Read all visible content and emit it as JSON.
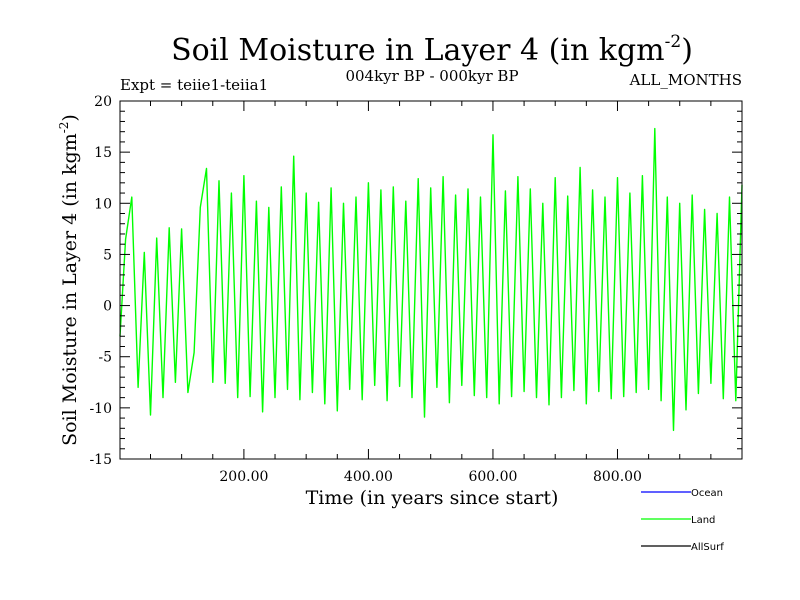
{
  "header": {
    "title_main": "Soil Moisture in Layer 4 (in kgm",
    "title_sup": "-2",
    "title_end": ")",
    "expt": "Expt = teiie1-teiia1",
    "period": "004kyr BP - 000kyr BP",
    "months": "ALL_MONTHS"
  },
  "colors": {
    "ocean": "#0000ff",
    "land": "#00ff00",
    "allsurf": "#000000",
    "axis": "#000000"
  },
  "chart_data": {
    "type": "line",
    "title": "Soil Moisture in Layer 4 (in kgm-2)",
    "xlabel": "Time (in years since start)",
    "ylabel": "Soil Moisture in Layer 4 (in kgm-2)",
    "ylabel_main": "Soil Moisture in Layer 4 (in kgm",
    "ylabel_sup": "-2",
    "ylabel_end": ")",
    "xlim": [
      1,
      1000
    ],
    "ylim": [
      -15,
      20
    ],
    "x_ticks": [
      {
        "value": 200,
        "label": "200.00"
      },
      {
        "value": 400,
        "label": "400.00"
      },
      {
        "value": 600,
        "label": "600.00"
      },
      {
        "value": 800,
        "label": "800.00"
      }
    ],
    "y_ticks": [
      {
        "value": 20,
        "label": "20"
      },
      {
        "value": 15,
        "label": "15"
      },
      {
        "value": 10,
        "label": "10"
      },
      {
        "value": 5,
        "label": "5"
      },
      {
        "value": 0,
        "label": "0"
      },
      {
        "value": -5,
        "label": "-5"
      },
      {
        "value": -10,
        "label": "-10"
      },
      {
        "value": -15,
        "label": "-15"
      }
    ],
    "grid": false,
    "legend_position": "bottom-right",
    "series": [
      {
        "name": "Ocean",
        "color": "#0000ff",
        "values": []
      },
      {
        "name": "Land",
        "color": "#00ff00",
        "x": [
          1,
          10,
          20,
          30,
          40,
          50,
          60,
          70,
          80,
          90,
          100,
          110,
          120,
          130,
          140,
          150,
          160,
          170,
          180,
          190,
          200,
          210,
          220,
          230,
          240,
          250,
          260,
          270,
          280,
          290,
          300,
          310,
          320,
          330,
          340,
          350,
          360,
          370,
          380,
          390,
          400,
          410,
          420,
          430,
          440,
          450,
          460,
          470,
          480,
          490,
          500,
          510,
          520,
          530,
          540,
          550,
          560,
          570,
          580,
          590,
          600,
          610,
          620,
          630,
          640,
          650,
          660,
          670,
          680,
          690,
          700,
          710,
          720,
          730,
          740,
          750,
          760,
          770,
          780,
          790,
          800,
          810,
          820,
          830,
          840,
          850,
          860,
          870,
          880,
          890,
          900,
          910,
          920,
          930,
          940,
          950,
          960,
          970,
          980,
          990,
          1000
        ],
        "values": [
          -3.0,
          6.5,
          10.6,
          -8.0,
          5.2,
          -10.7,
          6.6,
          -9.0,
          7.6,
          -7.5,
          7.5,
          -8.5,
          -4.6,
          9.6,
          13.4,
          -7.5,
          12.2,
          -7.6,
          11.0,
          -9.0,
          12.7,
          -8.9,
          10.2,
          -10.4,
          9.6,
          -9.0,
          11.6,
          -8.2,
          14.6,
          -9.2,
          11.0,
          -8.5,
          10.1,
          -9.6,
          11.5,
          -10.3,
          10.0,
          -8.2,
          10.6,
          -9.2,
          12.0,
          -7.8,
          11.3,
          -9.3,
          11.6,
          -7.9,
          10.2,
          -9.0,
          12.4,
          -10.9,
          11.5,
          -8.0,
          12.6,
          -9.5,
          10.8,
          -7.8,
          11.4,
          -8.8,
          10.6,
          -9.0,
          16.7,
          -9.6,
          11.2,
          -8.9,
          12.6,
          -8.4,
          11.4,
          -9.0,
          10.0,
          -9.7,
          12.5,
          -9.0,
          10.7,
          -8.3,
          13.5,
          -9.6,
          11.3,
          -8.4,
          10.6,
          -9.1,
          12.5,
          -8.9,
          11.0,
          -8.5,
          12.7,
          -8.2,
          17.3,
          -9.3,
          10.6,
          -12.2,
          10.0,
          -10.2,
          10.8,
          -8.6,
          9.4,
          -7.6,
          9.0,
          -9.1,
          10.6,
          -9.3,
          11.8
        ]
      },
      {
        "name": "AllSurf",
        "color": "#000000",
        "values": []
      }
    ]
  }
}
